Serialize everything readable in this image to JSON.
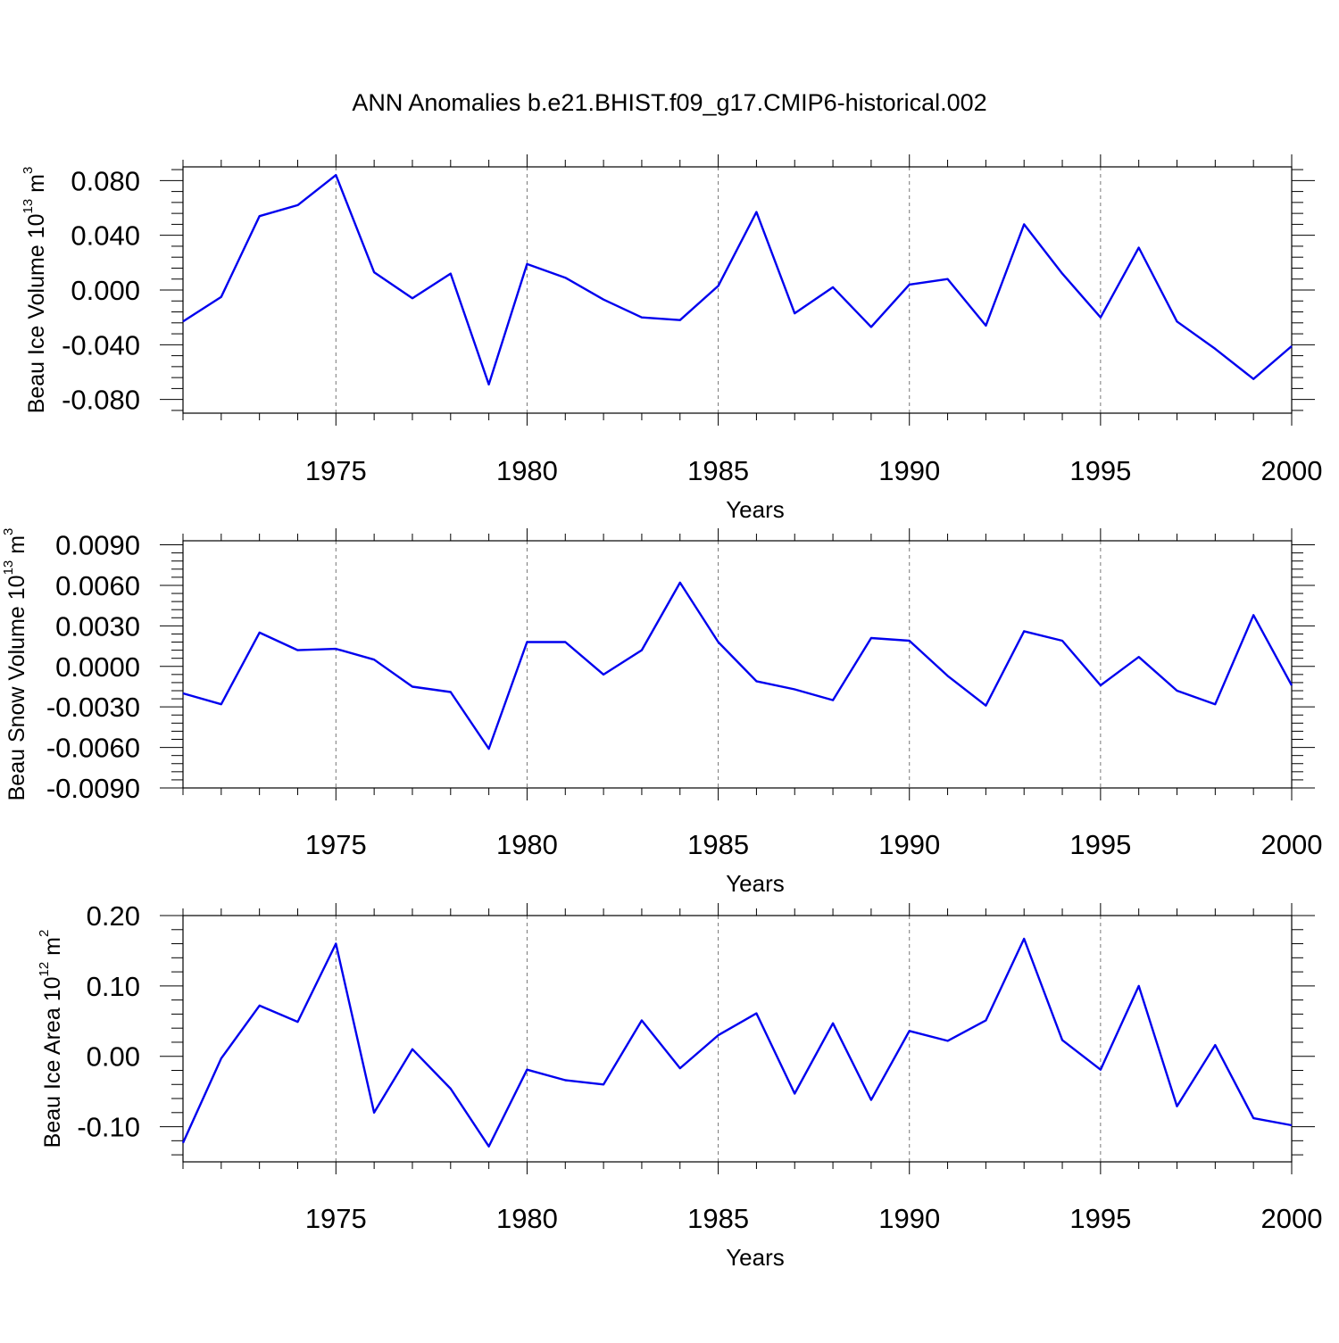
{
  "title": "ANN Anomalies b.e21.BHIST.f09_g17.CMIP6-historical.002",
  "line_color": "#0000ee",
  "grid_color": "#777777",
  "chart_data": [
    {
      "type": "line",
      "xlabel": "Years",
      "ylabel": {
        "text": "Beau Ice Volume 10",
        "exp": "13",
        "unit": " m",
        "unit_exp": "3"
      },
      "xlim": [
        1971,
        2000
      ],
      "ylim": [
        -0.09,
        0.09
      ],
      "x_ticks": [
        1975,
        1980,
        1985,
        1990,
        1995,
        2000
      ],
      "y_ticks": [
        0.08,
        0.04,
        0.0,
        -0.04,
        -0.08
      ],
      "y_tick_labels": [
        "0.080",
        "0.040",
        "0.000",
        "-0.040",
        "-0.080"
      ],
      "x": [
        1971,
        1972,
        1973,
        1974,
        1975,
        1976,
        1977,
        1978,
        1979,
        1980,
        1981,
        1982,
        1983,
        1984,
        1985,
        1986,
        1987,
        1988,
        1989,
        1990,
        1991,
        1992,
        1993,
        1994,
        1995,
        1996,
        1997,
        1998,
        1999,
        2000
      ],
      "values": [
        -0.023,
        -0.005,
        0.054,
        0.062,
        0.084,
        0.013,
        -0.006,
        0.012,
        -0.069,
        0.019,
        0.009,
        -0.007,
        -0.02,
        -0.022,
        0.003,
        0.057,
        -0.017,
        0.002,
        -0.027,
        0.004,
        0.008,
        -0.026,
        0.048,
        0.012,
        -0.02,
        0.031,
        -0.023,
        -0.043,
        -0.065,
        -0.041
      ]
    },
    {
      "type": "line",
      "xlabel": "Years",
      "ylabel": {
        "text": "Beau Snow Volume 10",
        "exp": "13",
        "unit": " m",
        "unit_exp": "3"
      },
      "xlim": [
        1971,
        2000
      ],
      "ylim": [
        -0.009,
        0.0093
      ],
      "x_ticks": [
        1975,
        1980,
        1985,
        1990,
        1995,
        2000
      ],
      "y_ticks": [
        0.009,
        0.006,
        0.003,
        0.0,
        -0.003,
        -0.006,
        -0.009
      ],
      "y_tick_labels": [
        "0.0090",
        "0.0060",
        "0.0030",
        "0.0000",
        "-0.0030",
        "-0.0060",
        "-0.0090"
      ],
      "x": [
        1971,
        1972,
        1973,
        1974,
        1975,
        1976,
        1977,
        1978,
        1979,
        1980,
        1981,
        1982,
        1983,
        1984,
        1985,
        1986,
        1987,
        1988,
        1989,
        1990,
        1991,
        1992,
        1993,
        1994,
        1995,
        1996,
        1997,
        1998,
        1999,
        2000
      ],
      "values": [
        -0.002,
        -0.0028,
        0.0025,
        0.0012,
        0.0013,
        0.0005,
        -0.0015,
        -0.0019,
        -0.0061,
        0.0018,
        0.0018,
        -0.0006,
        0.0012,
        0.0062,
        0.0018,
        -0.0011,
        -0.0017,
        -0.0025,
        0.0021,
        0.0019,
        -0.0007,
        -0.0029,
        0.0026,
        0.0019,
        -0.0014,
        0.0007,
        -0.0018,
        -0.0028,
        0.0038,
        -0.0014
      ]
    },
    {
      "type": "line",
      "xlabel": "Years",
      "ylabel": {
        "text": "Beau Ice Area 10",
        "exp": "12",
        "unit": " m",
        "unit_exp": "2"
      },
      "xlim": [
        1971,
        2000
      ],
      "ylim": [
        -0.15,
        0.2
      ],
      "x_ticks": [
        1975,
        1980,
        1985,
        1990,
        1995,
        2000
      ],
      "y_ticks": [
        0.2,
        0.1,
        0.0,
        -0.1
      ],
      "y_tick_labels": [
        "0.20",
        "0.10",
        "0.00",
        "-0.10"
      ],
      "x": [
        1971,
        1972,
        1973,
        1974,
        1975,
        1976,
        1977,
        1978,
        1979,
        1980,
        1981,
        1982,
        1983,
        1984,
        1985,
        1986,
        1987,
        1988,
        1989,
        1990,
        1991,
        1992,
        1993,
        1994,
        1995,
        1996,
        1997,
        1998,
        1999,
        2000
      ],
      "values": [
        -0.123,
        -0.003,
        0.072,
        0.049,
        0.16,
        -0.08,
        0.01,
        -0.046,
        -0.128,
        -0.019,
        -0.034,
        -0.04,
        0.051,
        -0.017,
        0.03,
        0.061,
        -0.053,
        0.047,
        -0.062,
        0.036,
        0.022,
        0.051,
        0.167,
        0.023,
        -0.019,
        0.1,
        -0.071,
        0.016,
        -0.088,
        -0.098
      ]
    }
  ]
}
